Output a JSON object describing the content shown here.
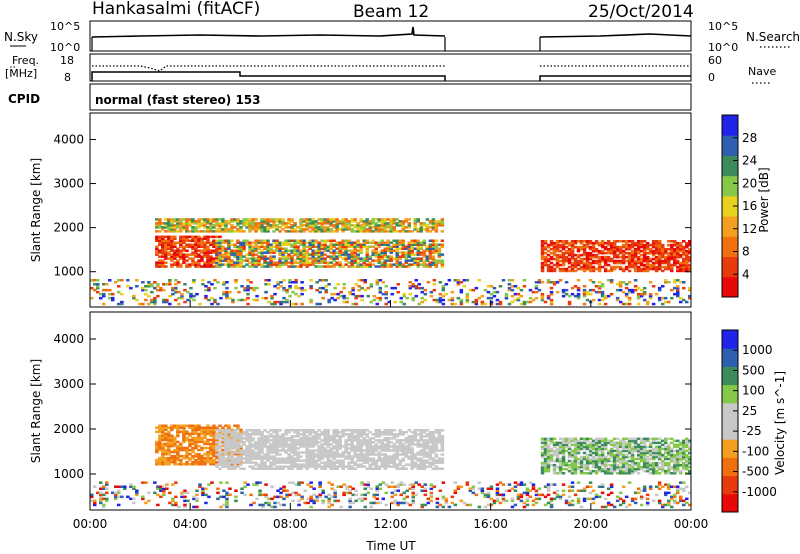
{
  "header": {
    "station": "Hankasalmi (fitACF)",
    "beam": "Beam 12",
    "date": "25/Oct/2014"
  },
  "status_panels": {
    "nsky_label": "N.Sky",
    "nsearch_label": "N.Search",
    "noise_ticks": [
      "10^5",
      "10^0"
    ],
    "freq_label_1": "Freq.",
    "freq_label_2": "[MHz]",
    "freq_ticks": [
      "18",
      "8"
    ],
    "nave_label": "Nave",
    "nave_ticks": [
      "60",
      "0"
    ],
    "cpid_label": "CPID",
    "cpid_text": "normal (fast stereo) 153"
  },
  "colors": {
    "power": [
      "#1f24e8",
      "#2f5fb0",
      "#3b8c5a",
      "#86c84a",
      "#e8d020",
      "#f3a020",
      "#f07010",
      "#e83a0c",
      "#e80808"
    ],
    "velocity": [
      "#1f24e8",
      "#2f5fb0",
      "#3b8c5a",
      "#86c84a",
      "#c8c8c8",
      "#c8c8c8",
      "#f3a020",
      "#f07010",
      "#e83a0c",
      "#e80808"
    ]
  },
  "chart_data": [
    {
      "type": "heatmap",
      "panel": "power",
      "xlabel": "",
      "ylabel": "Slant Range [km]",
      "ylim": [
        200,
        4600
      ],
      "y_ticks": [
        "4000",
        "3000",
        "2000",
        "1000"
      ],
      "colorbar_label": "Power [dB]",
      "colorbar_ticks": [
        "28",
        "24",
        "20",
        "16",
        "12",
        "8",
        "4"
      ],
      "colorbar_range": [
        0,
        32
      ],
      "data_gap_hours": [
        14,
        18
      ],
      "echo_bands": [
        {
          "x0": 2.6,
          "x1": 14.0,
          "y0": 1900,
          "y1": 2200,
          "level": "mid"
        },
        {
          "x0": 2.6,
          "x1": 5.2,
          "y0": 1100,
          "y1": 1800,
          "level": "high"
        },
        {
          "x0": 5.0,
          "x1": 14.0,
          "y0": 1100,
          "y1": 1700,
          "level": "mixed"
        },
        {
          "x0": 18.0,
          "x1": 24.0,
          "y0": 1000,
          "y1": 1700,
          "level": "high"
        },
        {
          "x0": 0.0,
          "x1": 24.0,
          "y0": 250,
          "y1": 800,
          "level": "low-scatter"
        }
      ]
    },
    {
      "type": "heatmap",
      "panel": "velocity",
      "xlabel": "Time UT",
      "ylabel": "Slant Range [km]",
      "ylim": [
        200,
        4600
      ],
      "y_ticks": [
        "4000",
        "3000",
        "2000",
        "1000"
      ],
      "x_ticks": [
        "00:00",
        "04:00",
        "08:00",
        "12:00",
        "16:00",
        "20:00",
        "00:00"
      ],
      "colorbar_label": "Velocity [m s^-1]",
      "colorbar_ticks": [
        "1000",
        "500",
        "100",
        "25",
        "-25",
        "-100",
        "-500",
        "-1000"
      ],
      "data_gap_hours": [
        14,
        18
      ],
      "echo_bands": [
        {
          "x0": 2.6,
          "x1": 6.0,
          "y0": 1200,
          "y1": 2100,
          "level": "negative"
        },
        {
          "x0": 5.0,
          "x1": 14.0,
          "y0": 1100,
          "y1": 2000,
          "level": "near-zero"
        },
        {
          "x0": 18.0,
          "x1": 24.0,
          "y0": 1000,
          "y1": 1800,
          "level": "positive"
        },
        {
          "x0": 0.0,
          "x1": 24.0,
          "y0": 250,
          "y1": 800,
          "level": "scatter"
        }
      ]
    }
  ]
}
